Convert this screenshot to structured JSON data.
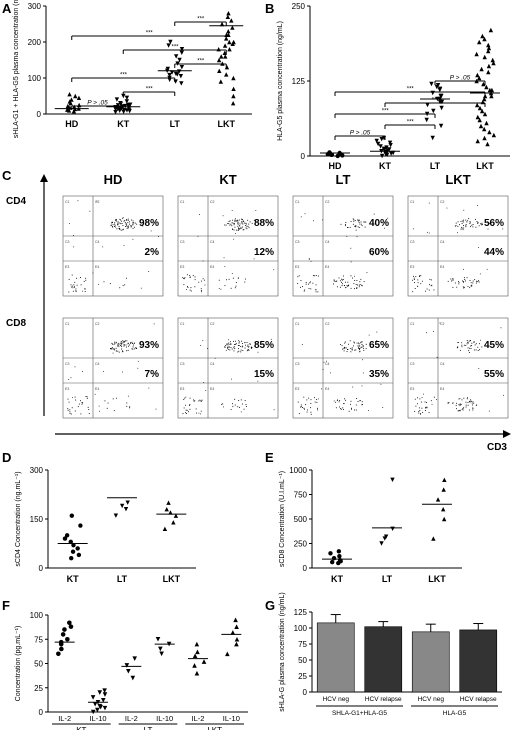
{
  "panel_letters": {
    "A": "A",
    "B": "B",
    "C": "C",
    "D": "D",
    "E": "E",
    "F": "F",
    "G": "G"
  },
  "significance": {
    "ns": "P > .05",
    "sig": "***"
  },
  "chart_data": [
    {
      "id": "A",
      "type": "scatter",
      "ylabel": "sHLA-G1 + HLA-G5 plasma concentration (ng/mL)",
      "ylim": [
        0,
        300
      ],
      "yticks": [
        0,
        100,
        200,
        300
      ],
      "categories": [
        "HD",
        "KT",
        "LT",
        "LKT"
      ],
      "points": [
        [
          10,
          12,
          15,
          18,
          20,
          22,
          25,
          30,
          35,
          40,
          45,
          50,
          55,
          8,
          14
        ],
        [
          5,
          8,
          10,
          12,
          14,
          16,
          18,
          20,
          22,
          25,
          28,
          30,
          35,
          40,
          45,
          50,
          6,
          9,
          11,
          13,
          15,
          17,
          19,
          21,
          24,
          26
        ],
        [
          85,
          90,
          95,
          100,
          105,
          108,
          110,
          112,
          115,
          118,
          120,
          125,
          130,
          140,
          150,
          160,
          170,
          180,
          190,
          200
        ],
        [
          30,
          50,
          70,
          90,
          110,
          130,
          150,
          160,
          170,
          180,
          190,
          200,
          210,
          220,
          230,
          240,
          250,
          260,
          270,
          280,
          100,
          120,
          140,
          160,
          200,
          220,
          180,
          195
        ]
      ],
      "means": [
        15,
        20,
        120,
        245
      ],
      "brackets": [
        {
          "from": 0,
          "to": 1,
          "level": 0,
          "label": "ns"
        },
        {
          "from": 1,
          "to": 2,
          "level": 1,
          "label": "sig"
        },
        {
          "from": 0,
          "to": 2,
          "level": 2,
          "label": "sig"
        },
        {
          "from": 2,
          "to": 3,
          "level": 3,
          "label": "sig"
        },
        {
          "from": 1,
          "to": 3,
          "level": 4,
          "label": "sig"
        },
        {
          "from": 0,
          "to": 3,
          "level": 5,
          "label": "sig"
        },
        {
          "from": 2,
          "to": 3,
          "level": 6,
          "label": "sig"
        }
      ]
    },
    {
      "id": "B",
      "type": "scatter",
      "ylabel": "HLA-G5 plasma concentration (ng/mL)",
      "ylim": [
        0,
        250
      ],
      "yticks": [
        0,
        125,
        250
      ],
      "categories": [
        "HD",
        "KT",
        "LT",
        "LKT"
      ],
      "points": [
        [
          0,
          1,
          2,
          3,
          4,
          5,
          6,
          2,
          3
        ],
        [
          0,
          2,
          4,
          5,
          6,
          8,
          10,
          12,
          14,
          16,
          18,
          20,
          22,
          25,
          28,
          30,
          3,
          7,
          9,
          11
        ],
        [
          30,
          50,
          60,
          70,
          75,
          80,
          85,
          90,
          95,
          100,
          105,
          110,
          112,
          115,
          118,
          120,
          90,
          95,
          100
        ],
        [
          20,
          30,
          40,
          50,
          60,
          70,
          80,
          90,
          100,
          110,
          120,
          130,
          140,
          150,
          160,
          170,
          180,
          190,
          200,
          210,
          75,
          85,
          95,
          105,
          115,
          125,
          135,
          145,
          155,
          165,
          175,
          185,
          195,
          65,
          55,
          45,
          35,
          25,
          100,
          110
        ]
      ],
      "means": [
        5,
        8,
        95,
        105
      ],
      "brackets": [
        {
          "from": 0,
          "to": 1,
          "level": 0,
          "label": "ns"
        },
        {
          "from": 1,
          "to": 2,
          "level": 1,
          "label": "sig"
        },
        {
          "from": 0,
          "to": 2,
          "level": 2,
          "label": "sig"
        },
        {
          "from": 1,
          "to": 3,
          "level": 3,
          "label": "sig"
        },
        {
          "from": 0,
          "to": 3,
          "level": 4,
          "label": "sig"
        },
        {
          "from": 2,
          "to": 3,
          "level": 5,
          "label": "ns"
        }
      ]
    },
    {
      "id": "C",
      "type": "flow-cytometry",
      "yaxis_labels": [
        "CD4",
        "CD8"
      ],
      "xaxis_label": "CD3",
      "columns": [
        "HD",
        "KT",
        "LT",
        "LKT"
      ],
      "gates": [
        "C1",
        "C2",
        "C3",
        "C4",
        "E1",
        "E2",
        "E3",
        "E4"
      ],
      "rows": [
        {
          "upper": [
            "98%",
            "88%",
            "40%",
            "56%"
          ],
          "lower": [
            "2%",
            "12%",
            "60%",
            "44%"
          ]
        },
        {
          "upper": [
            "93%",
            "85%",
            "65%",
            "45%"
          ],
          "lower": [
            "7%",
            "15%",
            "35%",
            "55%"
          ]
        }
      ]
    },
    {
      "id": "D",
      "type": "scatter",
      "ylabel": "sCD4 Concentration (ng.mL⁻¹)",
      "ylim": [
        0,
        300
      ],
      "yticks": [
        0,
        150,
        300
      ],
      "categories": [
        "KT",
        "LT",
        "LKT"
      ],
      "points": [
        [
          30,
          40,
          50,
          60,
          70,
          80,
          90,
          100,
          130,
          160
        ],
        [
          160,
          180,
          190,
          200
        ],
        [
          120,
          140,
          160,
          170,
          180,
          200
        ]
      ],
      "means": [
        75,
        215,
        165
      ]
    },
    {
      "id": "E",
      "type": "scatter",
      "ylabel": "sCD8 Concentration (U.I.mL⁻¹)",
      "ylim": [
        0,
        1000
      ],
      "yticks": [
        0,
        250,
        500,
        750,
        1000
      ],
      "categories": [
        "KT",
        "LT",
        "LKT"
      ],
      "points": [
        [
          50,
          60,
          70,
          80,
          100,
          120,
          150,
          170
        ],
        [
          250,
          300,
          320,
          400,
          900
        ],
        [
          300,
          500,
          600,
          700,
          800,
          900
        ]
      ],
      "means": [
        90,
        410,
        650
      ]
    },
    {
      "id": "F",
      "type": "scatter",
      "ylabel": "Concentration (pg.mL⁻¹)",
      "ylim": [
        0,
        100
      ],
      "yticks": [
        0,
        25,
        50,
        75,
        100
      ],
      "groups": [
        "KT",
        "LT",
        "LKT"
      ],
      "categories": [
        "IL-2",
        "IL-10",
        "IL-2",
        "IL-10",
        "IL-2",
        "IL-10"
      ],
      "points": [
        [
          60,
          65,
          70,
          72,
          75,
          80,
          85,
          88,
          92
        ],
        [
          0,
          2,
          4,
          5,
          6,
          8,
          10,
          12,
          15,
          18,
          20,
          22
        ],
        [
          35,
          42,
          48,
          55
        ],
        [
          60,
          65,
          70,
          75
        ],
        [
          40,
          48,
          52,
          58,
          62,
          70
        ],
        [
          60,
          70,
          75,
          82,
          88,
          95
        ]
      ],
      "markers": [
        "circle",
        "triangle-down",
        "triangle-down",
        "triangle-down",
        "triangle-up",
        "triangle-up"
      ],
      "means": [
        72,
        10,
        47,
        70,
        55,
        80
      ]
    },
    {
      "id": "G",
      "type": "bar",
      "ylabel": "sHLA-G plasma concentration (ng/mL)",
      "ylim": [
        0,
        125
      ],
      "yticks": [
        0,
        25,
        50,
        75,
        100,
        125
      ],
      "categories": [
        "HCV neg",
        "HCV relapse",
        "HCV neg",
        "HCV relapse"
      ],
      "values": [
        108,
        102,
        94,
        97
      ],
      "errors": [
        13,
        8,
        12,
        10
      ],
      "colors": [
        "#888888",
        "#333333",
        "#888888",
        "#333333"
      ],
      "group_labels": [
        "SHLA-G1+HLA-G5",
        "HLA-G5"
      ]
    }
  ]
}
